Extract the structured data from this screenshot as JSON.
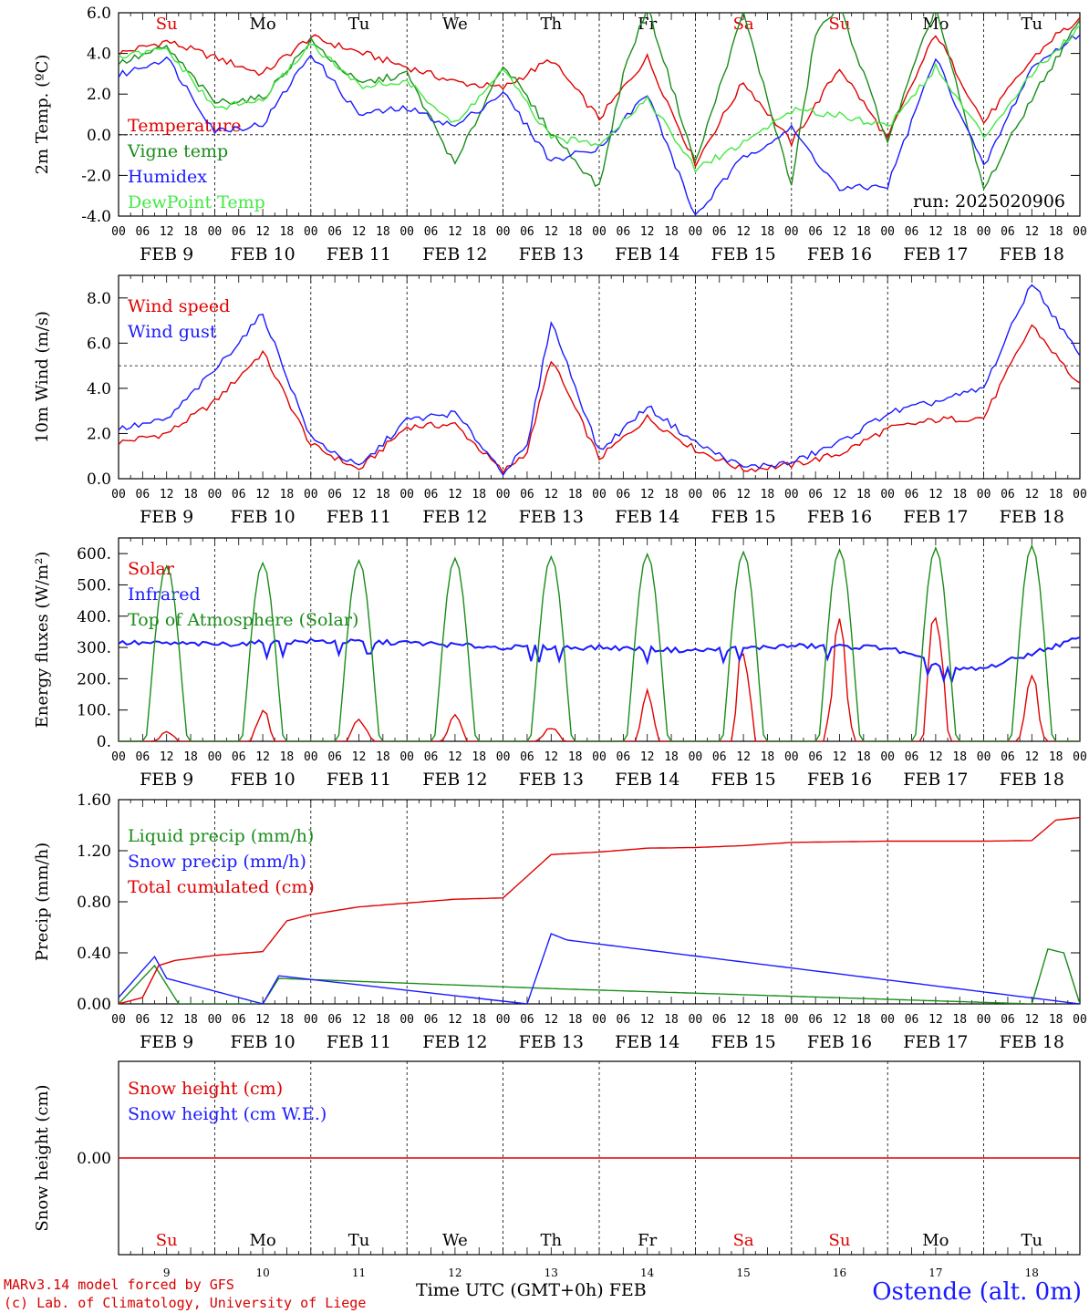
{
  "footer": {
    "model": "MARv3.14 model forced by GFS",
    "credit": "(c) Lab. of Climatology, University of Liege",
    "xaxis_title": "Time UTC (GMT+0h) FEB",
    "station": "Ostende (alt. 0m)"
  },
  "chart_data": {
    "days": [
      "FEB  9",
      "FEB 10",
      "FEB 11",
      "FEB 12",
      "FEB 13",
      "FEB 14",
      "FEB 15",
      "FEB 16",
      "FEB 17",
      "FEB 18"
    ],
    "day_numbers": [
      "9",
      "10",
      "11",
      "12",
      "13",
      "14",
      "15",
      "16",
      "17",
      "18"
    ],
    "weekdays": [
      "Su",
      "Mo",
      "Tu",
      "We",
      "Th",
      "Fr",
      "Sa",
      "Su",
      "Mo",
      "Tu"
    ],
    "weekday_colors": [
      "#e00000",
      "#000000",
      "#000000",
      "#000000",
      "#000000",
      "#000000",
      "#e00000",
      "#e00000",
      "#000000",
      "#000000"
    ],
    "hour_ticks": [
      "00",
      "06",
      "12",
      "18"
    ],
    "panels": [
      {
        "type": "line",
        "ylabel": "2m Temp. (ºC)",
        "ylim": [
          -4,
          6
        ],
        "yticks": [
          "-4.0",
          "-2.0",
          "0.0",
          "2.0",
          "4.0",
          "6.0"
        ],
        "ref_line": 0,
        "run_label": "run: 2025020906",
        "series": [
          {
            "name": "Temperature",
            "color": "#e00000",
            "x": [
              0,
              12,
              36,
              48,
              84,
              96,
              108,
              120,
              132,
              144,
              156,
              168,
              180,
              192,
              204,
              216,
              228,
              234,
              240
            ],
            "values": [
              4.0,
              4.6,
              3.0,
              4.8,
              2.6,
              2.3,
              3.7,
              0.8,
              3.8,
              -1.4,
              2.6,
              -0.4,
              3.3,
              -0.2,
              5.0,
              0.6,
              3.7,
              4.9,
              5.6
            ]
          },
          {
            "name": "Vigne temp",
            "color": "#1a8c1a",
            "x": [
              0,
              12,
              24,
              36,
              48,
              60,
              72,
              84,
              96,
              108,
              120,
              126,
              132,
              144,
              156,
              168,
              174,
              180,
              192,
              204,
              216,
              228,
              240
            ],
            "values": [
              3.5,
              4.3,
              1.6,
              1.8,
              4.6,
              2.5,
              3.0,
              -1.5,
              3.5,
              0.1,
              -2.6,
              3.0,
              6.3,
              -1.4,
              6.0,
              -2.5,
              5.0,
              6.3,
              -0.3,
              6.3,
              -2.7,
              1.8,
              5.6
            ]
          },
          {
            "name": "Humidex",
            "color": "#1a1aff",
            "x": [
              0,
              12,
              24,
              36,
              48,
              60,
              72,
              84,
              96,
              108,
              120,
              132,
              144,
              156,
              168,
              180,
              192,
              204,
              216,
              228,
              240
            ],
            "values": [
              2.9,
              3.8,
              0.2,
              0.5,
              4.0,
              1.0,
              1.3,
              0.4,
              2.1,
              -1.3,
              -0.6,
              2.0,
              -4.0,
              -1.1,
              0.3,
              -2.7,
              -2.5,
              3.8,
              -1.6,
              3.3,
              5.0
            ]
          },
          {
            "name": "DewPoint Temp",
            "color": "#44e844",
            "x": [
              0,
              12,
              24,
              36,
              48,
              60,
              72,
              84,
              96,
              108,
              120,
              132,
              144,
              156,
              168,
              180,
              192,
              204,
              216,
              228,
              240
            ],
            "values": [
              3.8,
              4.2,
              1.3,
              1.7,
              4.5,
              2.4,
              2.6,
              0.5,
              3.2,
              -0.2,
              -0.4,
              1.8,
              -1.7,
              -0.4,
              1.2,
              1.0,
              0.4,
              3.3,
              -0.1,
              3.0,
              5.3
            ]
          }
        ]
      },
      {
        "type": "line",
        "ylabel": "10m Wind (m/s)",
        "ylim": [
          0,
          9
        ],
        "yticks": [
          "0.0",
          "2.0",
          "4.0",
          "6.0",
          "8.0"
        ],
        "ref_line": 5,
        "series": [
          {
            "name": "Wind speed",
            "color": "#e00000",
            "x": [
              0,
              12,
              24,
              36,
              48,
              60,
              72,
              84,
              96,
              102,
              108,
              120,
              132,
              144,
              156,
              168,
              180,
              192,
              204,
              216,
              228,
              240
            ],
            "values": [
              1.6,
              2.0,
              3.4,
              5.6,
              1.5,
              0.4,
              2.3,
              2.4,
              0.3,
              1.2,
              5.3,
              0.9,
              2.7,
              1.3,
              0.4,
              0.6,
              1.1,
              2.2,
              2.6,
              2.7,
              6.8,
              4.1
            ]
          },
          {
            "name": "Wind gust",
            "color": "#1a1aff",
            "x": [
              0,
              12,
              24,
              36,
              48,
              60,
              72,
              84,
              96,
              102,
              108,
              120,
              132,
              144,
              156,
              168,
              180,
              192,
              204,
              216,
              228,
              240
            ],
            "values": [
              2.2,
              2.6,
              4.8,
              7.3,
              1.8,
              0.5,
              2.6,
              2.9,
              0.3,
              1.4,
              7.0,
              1.2,
              3.2,
              1.6,
              0.5,
              0.7,
              1.6,
              2.9,
              3.4,
              4.0,
              8.7,
              5.4
            ]
          }
        ]
      },
      {
        "type": "line",
        "ylabel": "Energy fluxes (W/m²)",
        "ylim": [
          0,
          650
        ],
        "yticks": [
          "0.",
          "100.",
          "200.",
          "300.",
          "400.",
          "500.",
          "600."
        ],
        "series": [
          {
            "name": "Solar",
            "color": "#e00000",
            "peaks": [
              30,
              95,
              70,
              80,
              45,
              150,
              290,
              420,
              435,
              210
            ]
          },
          {
            "name": "Infrared",
            "color": "#1a1aff",
            "x": [
              0,
              24,
              48,
              72,
              96,
              120,
              144,
              168,
              192,
              208,
              216,
              240
            ],
            "values": [
              315,
              310,
              320,
              315,
              300,
              300,
              290,
              305,
              300,
              228,
              232,
              330
            ]
          },
          {
            "name": "Top of Atmosphere (Solar)",
            "color": "#1a8c1a",
            "peaks": [
              560,
              570,
              578,
              585,
              590,
              598,
              605,
              612,
              618,
              625
            ]
          }
        ]
      },
      {
        "type": "line",
        "ylabel": "Precip (mm/h)",
        "ylim": [
          0,
          1.6
        ],
        "yticks": [
          "0.00",
          "0.40",
          "0.80",
          "1.20",
          "1.60"
        ],
        "series": [
          {
            "name": "Liquid precip (mm/h)",
            "color": "#1a8c1a",
            "x": [
              0,
              9,
              15,
              36,
              40,
              108,
              228,
              232,
              236,
              240
            ],
            "values": [
              0,
              0.3,
              0,
              0,
              0.2,
              0.12,
              0,
              0.43,
              0.4,
              0
            ]
          },
          {
            "name": "Snow precip (mm/h)",
            "color": "#1a1aff",
            "x": [
              0,
              9,
              12,
              36,
              40,
              102,
              108,
              112,
              240
            ],
            "values": [
              0.05,
              0.37,
              0.2,
              0,
              0.22,
              0.0,
              0.55,
              0.5,
              0
            ]
          },
          {
            "name": "Total cumulated (cm)",
            "color": "#e00000",
            "x": [
              0,
              6,
              10,
              14,
              24,
              36,
              42,
              48,
              60,
              72,
              84,
              96,
              102,
              108,
              120,
              132,
              144,
              156,
              168,
              180,
              192,
              204,
              216,
              228,
              234,
              240
            ],
            "values": [
              0,
              0.05,
              0.3,
              0.34,
              0.38,
              0.41,
              0.65,
              0.7,
              0.76,
              0.79,
              0.82,
              0.83,
              1.0,
              1.17,
              1.19,
              1.22,
              1.225,
              1.24,
              1.265,
              1.27,
              1.275,
              1.275,
              1.275,
              1.28,
              1.44,
              1.46
            ]
          }
        ]
      },
      {
        "type": "line",
        "ylabel": "Snow height (cm)",
        "ylim": [
          -1,
          1
        ],
        "yticks": [
          "0.00"
        ],
        "series": [
          {
            "name": "Snow height (cm)",
            "color": "#e00000",
            "x": [
              0,
              240
            ],
            "values": [
              0,
              0
            ]
          },
          {
            "name": "Snow height (cm W.E.)",
            "color": "#1a1aff",
            "x": [],
            "values": []
          }
        ]
      }
    ]
  }
}
